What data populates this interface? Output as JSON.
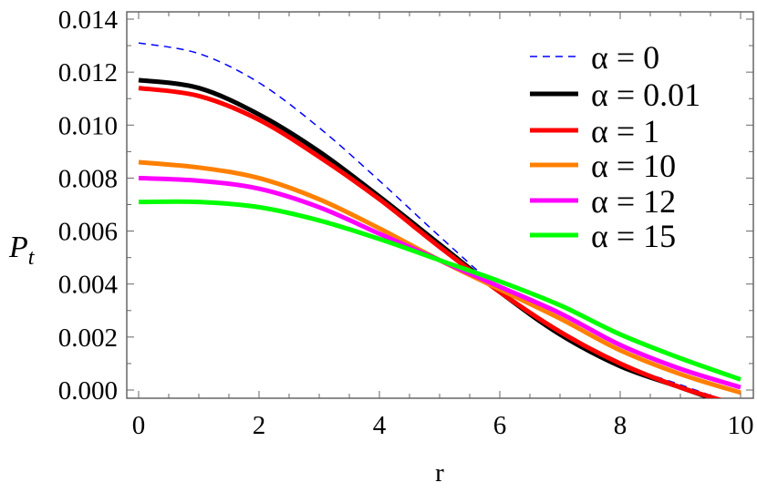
{
  "chart_data": {
    "type": "line",
    "title": "",
    "xlabel": "r",
    "ylabel": "P",
    "ylabel_subscript": "t",
    "xlim": [
      0,
      10
    ],
    "ylim": [
      0,
      0.014
    ],
    "x_ticks": [
      "0",
      "2",
      "4",
      "6",
      "8",
      "10"
    ],
    "y_ticks": [
      "0.000",
      "0.002",
      "0.004",
      "0.006",
      "0.008",
      "0.010",
      "0.012",
      "0.014"
    ],
    "grid": false,
    "legend_position": "top-right",
    "legend_symbol": "α",
    "x": [
      0,
      1,
      2,
      3,
      4,
      5,
      6,
      7,
      8,
      9,
      10
    ],
    "series": [
      {
        "name": "α = 0",
        "color": "#0000ff",
        "dashed": true,
        "values": [
          0.0131,
          0.0127,
          0.0116,
          0.0099,
          0.0079,
          0.0058,
          0.0038,
          0.0022,
          0.001,
          0.0002,
          -0.0006
        ]
      },
      {
        "name": "α = 0.01",
        "color": "#000000",
        "dashed": false,
        "values": [
          0.0117,
          0.0114,
          0.0104,
          0.009,
          0.0073,
          0.0055,
          0.0037,
          0.0021,
          0.0009,
          0.0001,
          -0.0007
        ]
      },
      {
        "name": "α = 1",
        "color": "#ff0000",
        "dashed": false,
        "values": [
          0.0114,
          0.0111,
          0.0102,
          0.0088,
          0.0072,
          0.0054,
          0.0037,
          0.0022,
          0.001,
          0.0001,
          -0.0006
        ]
      },
      {
        "name": "α = 10",
        "color": "#ff8000",
        "dashed": false,
        "values": [
          0.0086,
          0.0084,
          0.008,
          0.0072,
          0.0061,
          0.0049,
          0.0038,
          0.0027,
          0.0015,
          0.0006,
          -0.0001
        ]
      },
      {
        "name": "α = 12",
        "color": "#ff00ff",
        "dashed": false,
        "values": [
          0.008,
          0.0079,
          0.0076,
          0.0069,
          0.0059,
          0.0049,
          0.0039,
          0.0029,
          0.0017,
          0.0008,
          0.0001
        ]
      },
      {
        "name": "α = 15",
        "color": "#00ff00",
        "dashed": false,
        "values": [
          0.0071,
          0.0071,
          0.0069,
          0.0064,
          0.0057,
          0.0049,
          0.0041,
          0.0032,
          0.0021,
          0.0012,
          0.0004
        ]
      }
    ]
  }
}
